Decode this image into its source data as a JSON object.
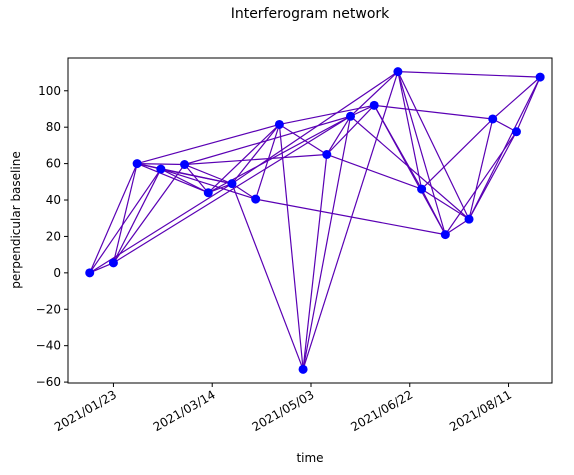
{
  "chart_data": {
    "type": "network",
    "title": "Interferogram network",
    "x_label": "time",
    "y_label": "perpendicular baseline",
    "x": [
      "2021/01/11",
      "2021/01/23",
      "2021/02/04",
      "2021/02/16",
      "2021/02/28",
      "2021/03/12",
      "2021/03/24",
      "2021/04/05",
      "2021/04/17",
      "2021/04/29",
      "2021/05/11",
      "2021/05/23",
      "2021/06/04",
      "2021/06/16",
      "2021/06/28",
      "2021/07/10",
      "2021/07/22",
      "2021/08/03",
      "2021/08/15",
      "2021/08/27"
    ],
    "values": [
      0,
      5.5,
      60,
      57,
      59.5,
      44,
      49,
      40.5,
      81.5,
      -53,
      65,
      86,
      92,
      110.5,
      46,
      21,
      29.5,
      84.5,
      77.5,
      107.5
    ],
    "edges": [
      [
        0,
        1
      ],
      [
        0,
        2
      ],
      [
        0,
        3
      ],
      [
        0,
        6
      ],
      [
        1,
        2
      ],
      [
        1,
        3
      ],
      [
        1,
        4
      ],
      [
        1,
        11
      ],
      [
        2,
        3
      ],
      [
        2,
        4
      ],
      [
        2,
        5
      ],
      [
        2,
        8
      ],
      [
        2,
        6
      ],
      [
        3,
        5
      ],
      [
        3,
        6
      ],
      [
        3,
        7
      ],
      [
        4,
        5
      ],
      [
        4,
        6
      ],
      [
        4,
        10
      ],
      [
        4,
        11
      ],
      [
        5,
        6
      ],
      [
        5,
        8
      ],
      [
        5,
        11
      ],
      [
        6,
        7
      ],
      [
        6,
        8
      ],
      [
        6,
        9
      ],
      [
        6,
        13
      ],
      [
        7,
        8
      ],
      [
        7,
        15
      ],
      [
        8,
        9
      ],
      [
        8,
        10
      ],
      [
        8,
        12
      ],
      [
        9,
        10
      ],
      [
        9,
        11
      ],
      [
        9,
        13
      ],
      [
        10,
        11
      ],
      [
        10,
        12
      ],
      [
        10,
        14
      ],
      [
        11,
        12
      ],
      [
        11,
        13
      ],
      [
        11,
        16
      ],
      [
        12,
        14
      ],
      [
        12,
        15
      ],
      [
        12,
        17
      ],
      [
        13,
        14
      ],
      [
        13,
        15
      ],
      [
        13,
        16
      ],
      [
        13,
        19
      ],
      [
        14,
        15
      ],
      [
        14,
        16
      ],
      [
        14,
        17
      ],
      [
        15,
        16
      ],
      [
        15,
        18
      ],
      [
        16,
        17
      ],
      [
        16,
        18
      ],
      [
        16,
        19
      ],
      [
        17,
        18
      ],
      [
        17,
        19
      ],
      [
        18,
        19
      ]
    ],
    "node_color": "#0000ff",
    "edge_color": "#5a00b4",
    "xlim": [
      "2020/12/31",
      "2021/09/02"
    ],
    "xticks": [
      "2021/01/23",
      "2021/03/14",
      "2021/05/03",
      "2021/06/22",
      "2021/08/11"
    ],
    "ylim": [
      -60.5,
      118
    ],
    "yticks": [
      {
        "value": -60,
        "label": "−60"
      },
      {
        "value": -40,
        "label": "−40"
      },
      {
        "value": -20,
        "label": "−20"
      },
      0,
      20,
      40,
      60,
      80,
      100
    ]
  }
}
